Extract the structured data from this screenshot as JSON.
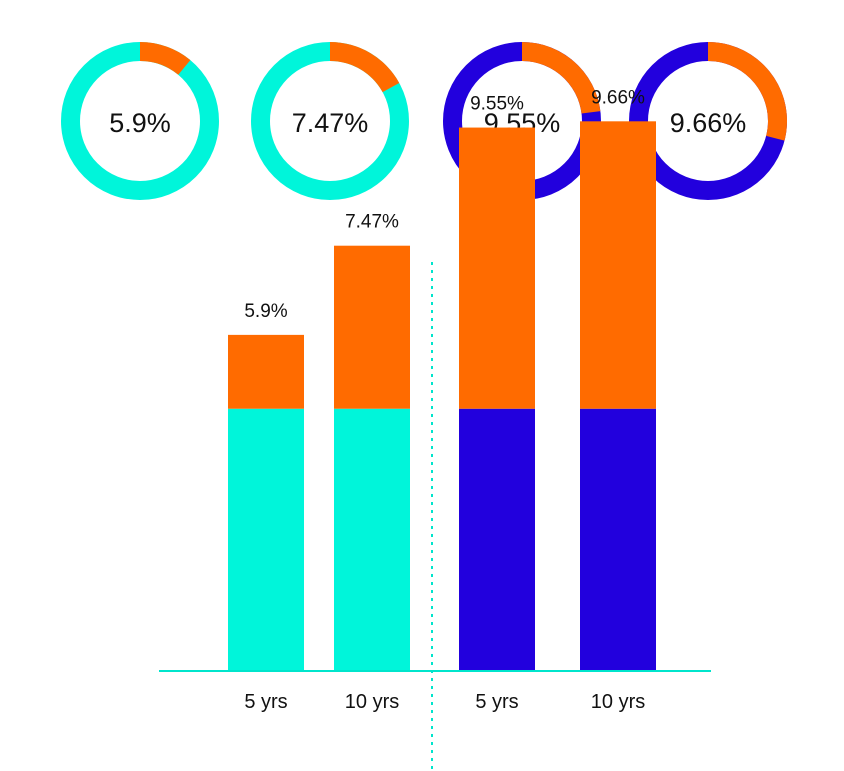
{
  "chart_data": [
    {
      "type": "pie",
      "subtype": "donut",
      "donuts": [
        {
          "label": "5.9%",
          "value": 5.9,
          "highlight_fraction": 0.11,
          "base_color": "#00F5DA"
        },
        {
          "label": "7.47%",
          "value": 7.47,
          "highlight_fraction": 0.17,
          "base_color": "#00F5DA"
        },
        {
          "label": "9.55%",
          "value": 9.55,
          "highlight_fraction": 0.23,
          "base_color": "#2200DD"
        },
        {
          "label": "9.66%",
          "value": 9.66,
          "highlight_fraction": 0.29,
          "base_color": "#2200DD"
        }
      ],
      "highlight_color": "#FF6B00"
    },
    {
      "type": "bar",
      "stacked": true,
      "categories": [
        "5 yrs",
        "10 yrs",
        "5 yrs",
        "10 yrs"
      ],
      "base_value": 4.6,
      "totals": [
        5.9,
        7.47,
        9.55,
        9.66
      ],
      "total_labels": [
        "5.9%",
        "7.47%",
        "9.55%",
        "9.66%"
      ],
      "base_colors": [
        "#00F5DA",
        "#00F5DA",
        "#2200DD",
        "#2200DD"
      ],
      "top_color": "#FF6B00",
      "axis_color": "#00E5CC",
      "ylim": [
        0,
        11
      ],
      "group_divider": "dashed",
      "title": "",
      "xlabel": "",
      "ylabel": ""
    }
  ]
}
